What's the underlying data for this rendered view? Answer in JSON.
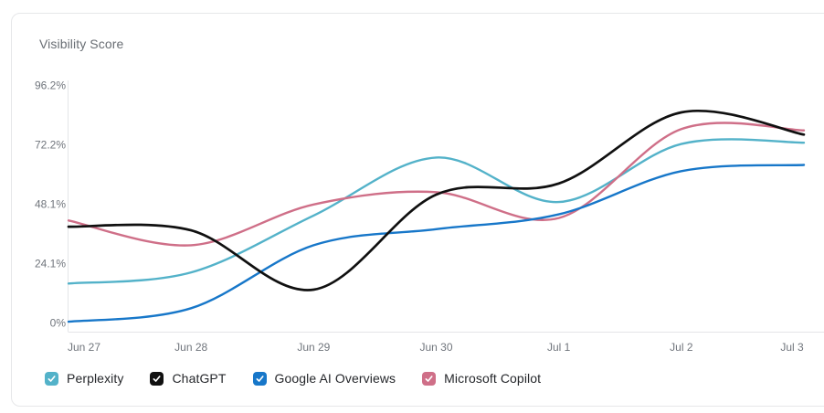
{
  "card": {
    "title": "Visibility Score"
  },
  "chart_data": {
    "type": "line",
    "title": "Visibility Score",
    "categories": [
      "Jun 27",
      "Jun 28",
      "Jun 29",
      "Jun 30",
      "Jul 1",
      "Jul 2",
      "Jul 3"
    ],
    "y_tick_labels": [
      "96.2%",
      "72.2%",
      "48.1%",
      "24.1%",
      "0%"
    ],
    "y_tick_values": [
      96.2,
      72.2,
      48.1,
      24.1,
      0
    ],
    "ylim": [
      0,
      96.2
    ],
    "unit": "%",
    "grid": "off",
    "curve": "smooth",
    "legend_position": "bottom",
    "axis_color": "#e4e5e8",
    "tick_color": "#70757c",
    "series": [
      {
        "name": "Perplexity",
        "color": "#53b2c9",
        "values": [
          16,
          20.5,
          43.5,
          67,
          49,
          72.5,
          73
        ]
      },
      {
        "name": "ChatGPT",
        "color": "#101010",
        "values": [
          39,
          37.5,
          13.5,
          52,
          56.5,
          85.3,
          76.3
        ]
      },
      {
        "name": "Google AI Overviews",
        "color": "#1777c9",
        "values": [
          0.5,
          6,
          31.5,
          38,
          44,
          61.5,
          64
        ]
      },
      {
        "name": "Microsoft Copilot",
        "color": "#cf6f88",
        "values": [
          41.5,
          31.5,
          48,
          53,
          42.5,
          78.5,
          78
        ]
      }
    ]
  }
}
